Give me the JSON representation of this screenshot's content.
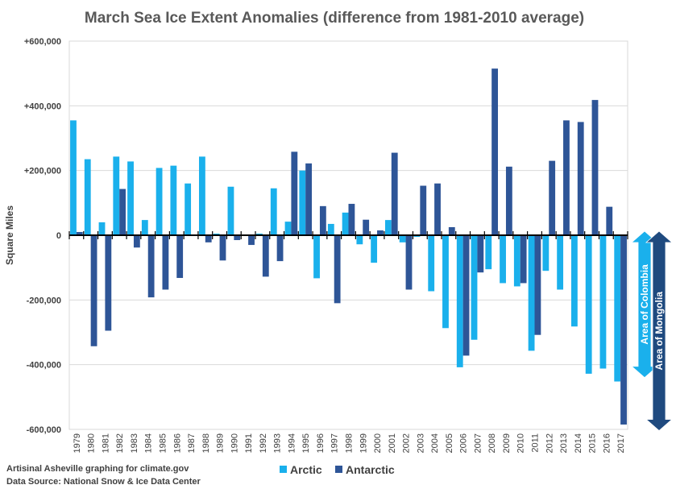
{
  "chart_data": {
    "type": "bar",
    "title": "March Sea Ice Extent Anomalies (difference from 1981-2010 average)",
    "ylabel": "Square Miles",
    "xlabel": "",
    "ylim": [
      -600000,
      600000
    ],
    "yticks": [
      600000,
      400000,
      200000,
      0,
      -200000,
      -400000,
      -600000
    ],
    "ytick_labels": [
      "+600,000",
      "+400,000",
      "+200,000",
      "0",
      "-200,000",
      "-400,000",
      "-600,000"
    ],
    "categories": [
      "1979",
      "1980",
      "1981",
      "1982",
      "1983",
      "1984",
      "1985",
      "1986",
      "1987",
      "1988",
      "1989",
      "1990",
      "1991",
      "1992",
      "1993",
      "1994",
      "1995",
      "1996",
      "1997",
      "1998",
      "1999",
      "2000",
      "2001",
      "2002",
      "2003",
      "2004",
      "2005",
      "2006",
      "2007",
      "2008",
      "2009",
      "2010",
      "2011",
      "2012",
      "2013",
      "2014",
      "2015",
      "2016",
      "2017"
    ],
    "series": [
      {
        "name": "Arctic",
        "color": "#1ab0ec",
        "values": [
          355000,
          235000,
          40000,
          243000,
          228000,
          47000,
          208000,
          215000,
          160000,
          243000,
          5000,
          150000,
          0,
          5000,
          145000,
          42000,
          200000,
          -133000,
          35000,
          70000,
          -28000,
          -85000,
          47000,
          -22000,
          -5000,
          -173000,
          -287000,
          -408000,
          -323000,
          -105000,
          -148000,
          -158000,
          -357000,
          -110000,
          -168000,
          -282000,
          -428000,
          -412000,
          -452000
        ]
      },
      {
        "name": "Antarctic",
        "color": "#2e5597",
        "values": [
          10000,
          -343000,
          -295000,
          143000,
          -38000,
          -192000,
          -168000,
          -132000,
          0,
          -22000,
          -78000,
          -15000,
          -30000,
          -128000,
          -80000,
          258000,
          222000,
          90000,
          -210000,
          97000,
          48000,
          15000,
          255000,
          -168000,
          153000,
          160000,
          25000,
          -372000,
          -115000,
          515000,
          212000,
          -148000,
          -308000,
          230000,
          355000,
          350000,
          418000,
          88000,
          -585000
        ]
      }
    ],
    "grid": true,
    "legend": "bottom-center"
  },
  "annotations": {
    "colombia_label": "Area of Colombia",
    "mongolia_label": "Area of Mongolia",
    "colombia_value": 440000,
    "mongolia_value": 604000,
    "colombia_color": "#1ab0ec",
    "mongolia_color": "#1f4a7f"
  },
  "credits": {
    "line1": "Artisinal Asheville graphing for climate.gov",
    "line2": "Data Source: National Snow & Ice Data Center"
  }
}
